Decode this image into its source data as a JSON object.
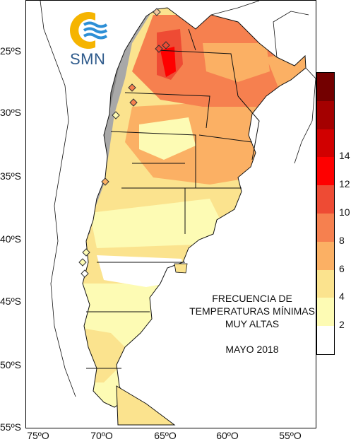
{
  "logo": {
    "text": "SMN",
    "icon": "smn-sun-waves-logo"
  },
  "title": {
    "lines": [
      "FRECUENCIA DE",
      "TEMPERATURAS MÍNIMAS",
      "MUY ALTAS"
    ],
    "month": "MAYO 2018"
  },
  "lat_labels": [
    "25ºS",
    "30ºS",
    "35ºS",
    "40ºS",
    "45ºS",
    "50ºS",
    "55ºS"
  ],
  "lon_labels": [
    "75ºO",
    "70ºO",
    "65ºO",
    "60ºO",
    "55ºO"
  ],
  "colorbar": {
    "ticks": [
      "2",
      "4",
      "6",
      "8",
      "10",
      "12",
      "14"
    ],
    "colors": [
      "#ffffff",
      "#fdfbb4",
      "#fbe38e",
      "#fbb064",
      "#f6804f",
      "#ee4b34",
      "#fe0000",
      "#d10000",
      "#a40000",
      "#730000"
    ]
  },
  "map": {
    "topography_shading": "gray",
    "stations_marker": "diamond"
  }
}
